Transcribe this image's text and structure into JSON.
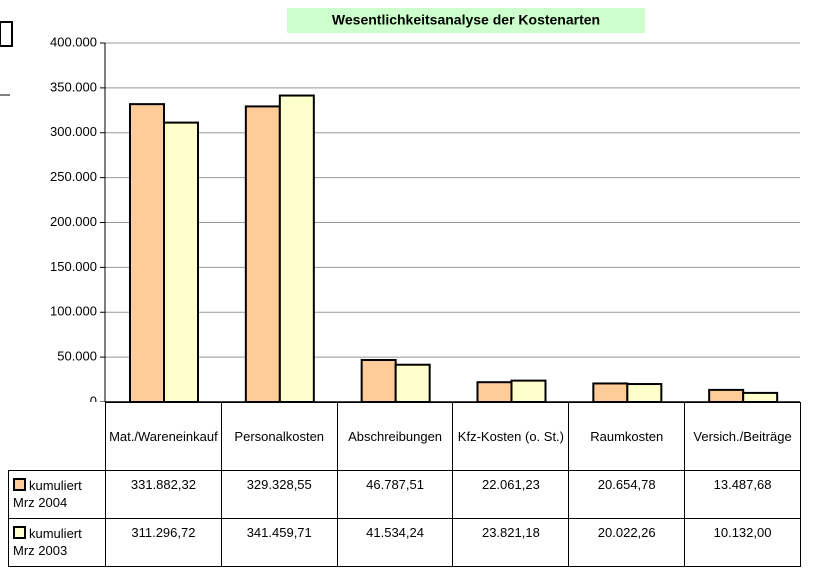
{
  "chart_data": {
    "type": "bar",
    "title": "Wesentlichkeitsanalyse der Kostenarten",
    "categories": [
      "Mat./Wareneinkauf",
      "Personalkosten",
      "Abschreibungen",
      "Kfz-Kosten (o. St.)",
      "Raumkosten",
      "Versich./Beiträge"
    ],
    "series": [
      {
        "name": "kumuliert Mrz 2004",
        "color": "#ffcc99",
        "values": [
          331882.32,
          329328.55,
          46787.51,
          22061.23,
          20654.78,
          13487.68
        ],
        "value_labels": [
          "331.882,32",
          "329.328,55",
          "46.787,51",
          "22.061,23",
          "20.654,78",
          "13.487,68"
        ]
      },
      {
        "name": "kumuliert Mrz 2003",
        "color": "#ffffcc",
        "values": [
          311296.72,
          341459.71,
          41534.24,
          23821.18,
          20022.26,
          10132.0
        ],
        "value_labels": [
          "311.296,72",
          "341.459,71",
          "41.534,24",
          "23.821,18",
          "20.022,26",
          "10.132,00"
        ]
      }
    ],
    "ylim": [
      0,
      400000
    ],
    "yticks": [
      0,
      {
        "value": 50000,
        "label": "50.000"
      },
      {
        "value": 100000,
        "label": "100.000"
      },
      {
        "value": 150000,
        "label": "150.000"
      },
      {
        "value": 200000,
        "label": "200.000"
      },
      {
        "value": 250000,
        "label": "250.000"
      },
      {
        "value": 300000,
        "label": "300.000"
      },
      {
        "value": 350000,
        "label": "350.000"
      },
      {
        "value": 400000,
        "label": "400.000"
      }
    ],
    "grid": true
  }
}
